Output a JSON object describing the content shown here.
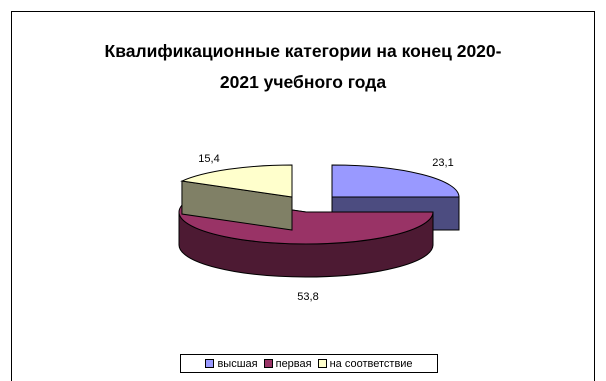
{
  "chart_data": {
    "type": "pie",
    "title_lines": [
      "Квалификационные категории на конец 2020-",
      "2021 учебного года"
    ],
    "categories": [
      "высшая",
      "первая",
      "на соответствие"
    ],
    "values": [
      23.1,
      53.8,
      15.4
    ],
    "value_labels": [
      "23,1",
      "53,8",
      "15,4"
    ],
    "legend_position": "bottom",
    "three_d": true,
    "exploded": true,
    "colors": {
      "top": [
        "#9999FF",
        "#993366",
        "#FFFFCC"
      ],
      "side": [
        "#4C4C80",
        "#4D1A33",
        "#808066"
      ]
    }
  }
}
